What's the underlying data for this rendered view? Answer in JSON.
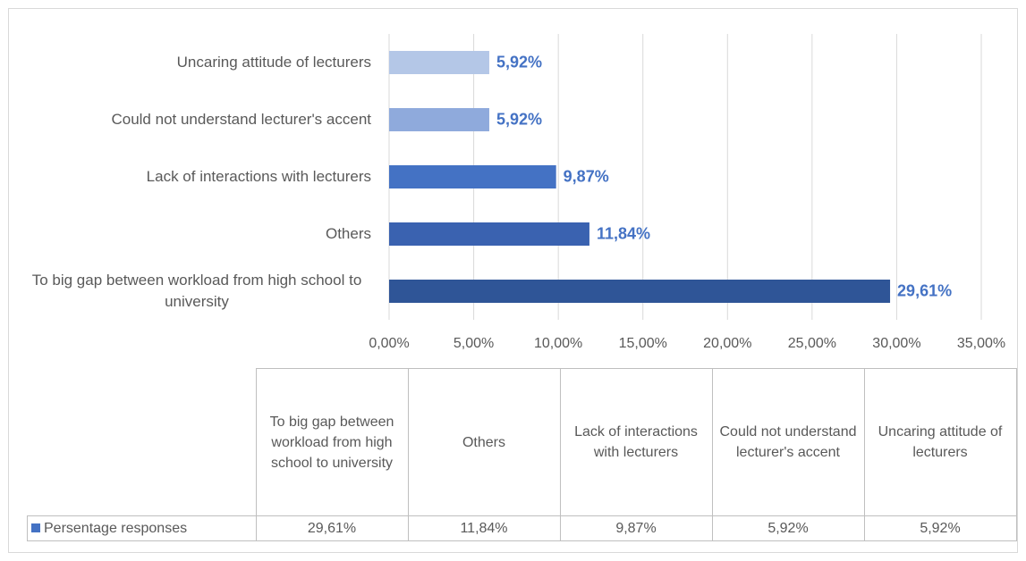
{
  "chart_data": {
    "type": "bar",
    "orientation": "horizontal",
    "categories": [
      "To big gap between workload from high school to university",
      "Others",
      "Lack of interactions with lecturers",
      "Could not understand lecturer's accent",
      "Uncaring attitude of lecturers"
    ],
    "series": [
      {
        "name": "Persentage responses",
        "color": "#4472c4",
        "bar_colors": [
          "#2f5597",
          "#3a62b0",
          "#4472c4",
          "#8faadc",
          "#b4c7e7"
        ],
        "values": [
          29.61,
          11.84,
          9.87,
          5.92,
          5.92
        ],
        "value_labels": [
          "29,61%",
          "11,84%",
          "9,87%",
          "5,92%",
          "5,92%"
        ]
      }
    ],
    "xlim": [
      0,
      35
    ],
    "xticks": [
      {
        "value": 0,
        "label": "0,00%"
      },
      {
        "value": 5,
        "label": "5,00%"
      },
      {
        "value": 10,
        "label": "10,00%"
      },
      {
        "value": 15,
        "label": "15,00%"
      },
      {
        "value": 20,
        "label": "20,00%"
      },
      {
        "value": 25,
        "label": "25,00%"
      },
      {
        "value": 30,
        "label": "30,00%"
      },
      {
        "value": 35,
        "label": "35,00%"
      }
    ],
    "grid": true,
    "data_table": true
  }
}
